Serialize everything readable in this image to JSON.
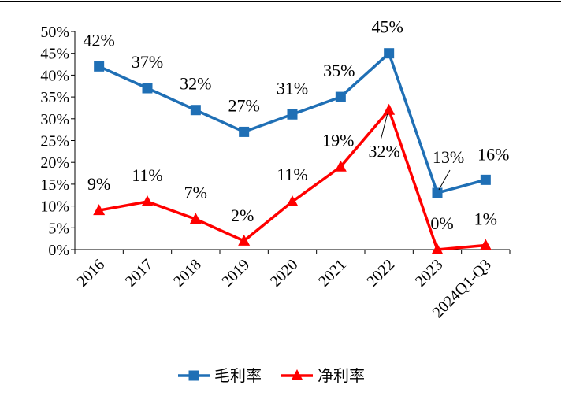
{
  "colors": {
    "gross_margin": "#1f6fb5",
    "net_margin": "#ff0000",
    "axis": "#000000",
    "top_rule": "#000000"
  },
  "chart_data": {
    "type": "line",
    "categories": [
      "2016",
      "2017",
      "2018",
      "2019",
      "2020",
      "2021",
      "2022",
      "2023",
      "2024Q1-Q3"
    ],
    "y_ticks": [
      "0%",
      "5%",
      "10%",
      "15%",
      "20%",
      "25%",
      "30%",
      "35%",
      "40%",
      "45%",
      "50%"
    ],
    "ylim": [
      0,
      50
    ],
    "grid": false,
    "legend_position": "bottom-center",
    "series": [
      {
        "name": "毛利率",
        "marker": "square",
        "color": "#1f6fb5",
        "values": [
          42,
          37,
          32,
          27,
          31,
          35,
          45,
          13,
          16
        ],
        "labels": [
          "42%",
          "37%",
          "32%",
          "27%",
          "31%",
          "35%",
          "45%",
          "13%",
          "16%"
        ]
      },
      {
        "name": "净利率",
        "marker": "triangle",
        "color": "#ff0000",
        "values": [
          9,
          11,
          7,
          2,
          11,
          19,
          32,
          0,
          1
        ],
        "labels": [
          "9%",
          "11%",
          "7%",
          "2%",
          "11%",
          "19%",
          "32%",
          "0%",
          "1%"
        ]
      }
    ]
  }
}
